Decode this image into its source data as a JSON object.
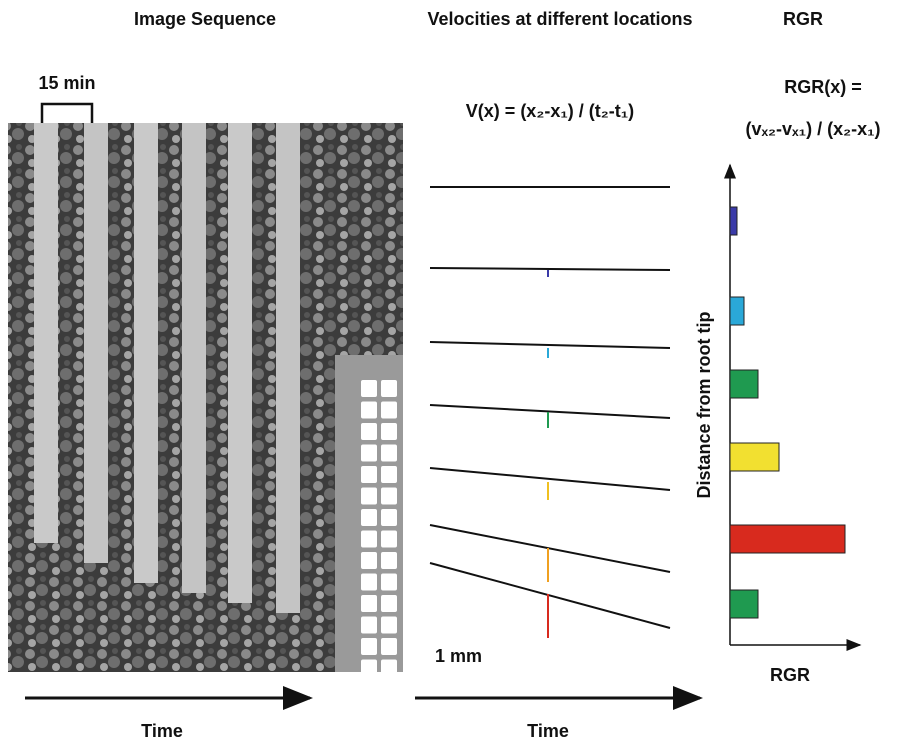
{
  "titles": {
    "image_sequence": "Image Sequence",
    "velocities": "Velocities at different locations",
    "rgr": "RGR"
  },
  "image": {
    "interval": "15 min",
    "scale": "1 mm",
    "x_axis": "Time"
  },
  "velocity": {
    "formula": "V(x) = (x₂-x₁) / (t₂-t₁)",
    "x_axis": "Time"
  },
  "rgr_chart": {
    "formula_top": "RGR(x) =",
    "formula_bottom": "(vₓ₂-vₓ₁) / (x₂-x₁)",
    "y_axis": "Distance from root tip",
    "x_axis": "RGR",
    "bars": [
      {
        "color": "#3a3aa8",
        "value": 7
      },
      {
        "color": "#2aa8d8",
        "value": 14
      },
      {
        "color": "#1f9a50",
        "value": 28
      },
      {
        "color": "#f2e030",
        "value": 49
      },
      {
        "color": "#d82a1e",
        "value": 115
      },
      {
        "color": "#1f9a50",
        "value": 28
      }
    ]
  }
}
